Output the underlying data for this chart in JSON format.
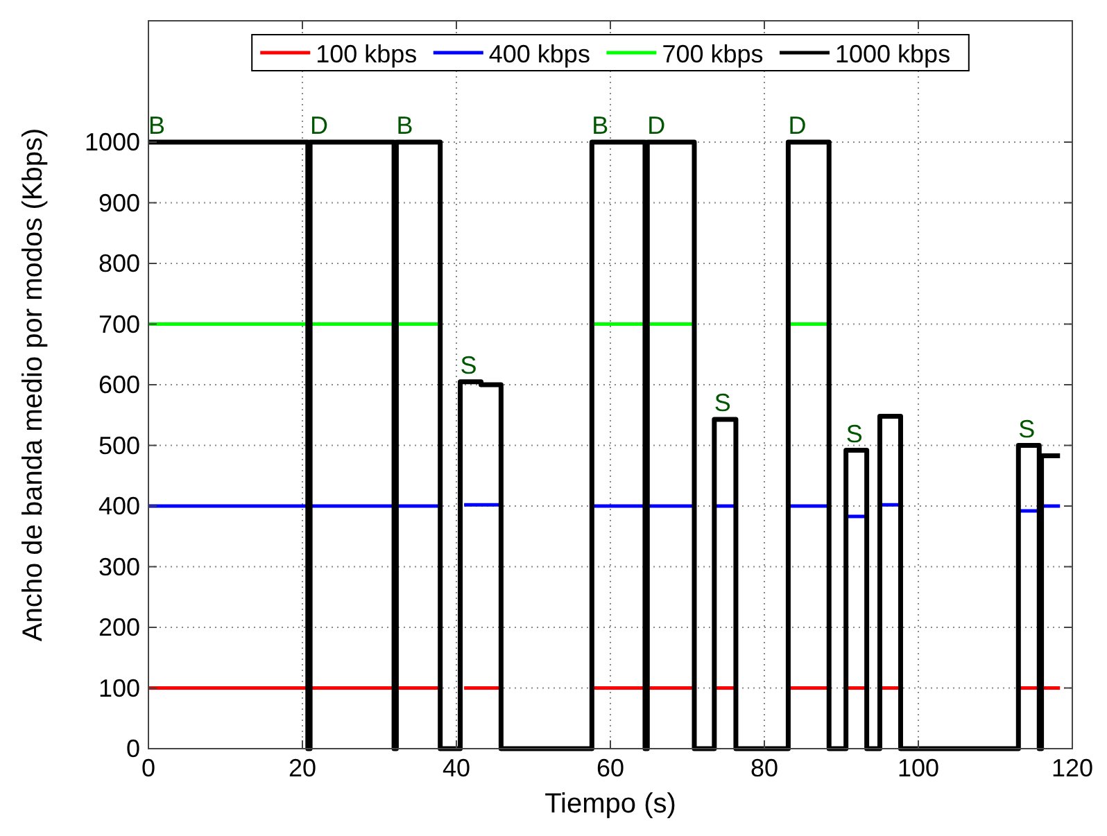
{
  "chart_data": {
    "type": "line",
    "xlabel": "Tiempo (s)",
    "ylabel": "Ancho de banda medio por modos (Kbps)",
    "xlim": [
      0,
      120
    ],
    "xticks": [
      0,
      20,
      40,
      60,
      80,
      100,
      120
    ],
    "ylim": [
      0,
      1200
    ],
    "yticks": [
      0,
      100,
      200,
      300,
      400,
      500,
      600,
      700,
      800,
      900,
      1000
    ],
    "grid": true,
    "legend": "top",
    "marker": "none",
    "line_style": "solid",
    "series": [
      {
        "name": "100 kbps",
        "color": "#ff0000",
        "x": [
          0,
          37.9,
          39,
          41,
          45.8,
          50,
          57.6,
          70.9,
          72,
          73.5,
          76.3,
          80,
          83.1,
          88.4,
          89,
          90.6,
          93.3,
          94,
          95,
          97.7,
          105,
          113,
          118.4
        ],
        "values": [
          100,
          100,
          null,
          100,
          100,
          null,
          100,
          100,
          null,
          100,
          100,
          null,
          100,
          100,
          null,
          100,
          100,
          null,
          100,
          100,
          null,
          100,
          100
        ]
      },
      {
        "name": "400 kbps",
        "color": "#0000ff",
        "x": [
          0,
          37.9,
          39,
          41,
          45.8,
          50,
          57.6,
          70.9,
          72,
          73.5,
          76.3,
          80,
          83.1,
          88.4,
          89,
          90.6,
          93.3,
          94,
          95,
          97.7,
          105,
          113,
          115.7,
          115.71,
          118.4
        ],
        "values": [
          400,
          400,
          null,
          402,
          402,
          null,
          400,
          400,
          null,
          400,
          400,
          null,
          400,
          400,
          null,
          383,
          383,
          null,
          402,
          402,
          null,
          392,
          392,
          400,
          400
        ]
      },
      {
        "name": "700 kbps",
        "color": "#00ff00",
        "x": [
          0,
          37.9,
          45,
          57.6,
          70.9,
          77,
          83.1,
          88.4
        ],
        "values": [
          700,
          700,
          null,
          700,
          700,
          null,
          700,
          700
        ]
      },
      {
        "name": "1000 kbps",
        "color": "#000000",
        "type": "step",
        "x": [
          0,
          20.7,
          21.0,
          31.9,
          32.2,
          37.9,
          40.5,
          43.2,
          45.8,
          57.6,
          64.5,
          64.8,
          70.9,
          73.5,
          76.3,
          83.1,
          88.4,
          90.6,
          93.3,
          95.0,
          97.7,
          113.0,
          115.7,
          116.0,
          118.4
        ],
        "values": [
          1000,
          0,
          1000,
          0,
          1000,
          0,
          605,
          600,
          0,
          1000,
          0,
          1000,
          0,
          543,
          0,
          1000,
          0,
          492,
          0,
          548,
          0,
          500,
          0,
          483,
          483
        ]
      }
    ],
    "annotations": [
      {
        "text": "B",
        "x": 0,
        "y": 1000
      },
      {
        "text": "D",
        "x": 21,
        "y": 1000
      },
      {
        "text": "B",
        "x": 32.2,
        "y": 1000
      },
      {
        "text": "S",
        "x": 40.5,
        "y": 605
      },
      {
        "text": "B",
        "x": 57.6,
        "y": 1000
      },
      {
        "text": "D",
        "x": 64.8,
        "y": 1000
      },
      {
        "text": "S",
        "x": 73.5,
        "y": 543
      },
      {
        "text": "D",
        "x": 83.1,
        "y": 1000
      },
      {
        "text": "S",
        "x": 90.6,
        "y": 492
      },
      {
        "text": "S",
        "x": 113,
        "y": 500
      }
    ]
  }
}
